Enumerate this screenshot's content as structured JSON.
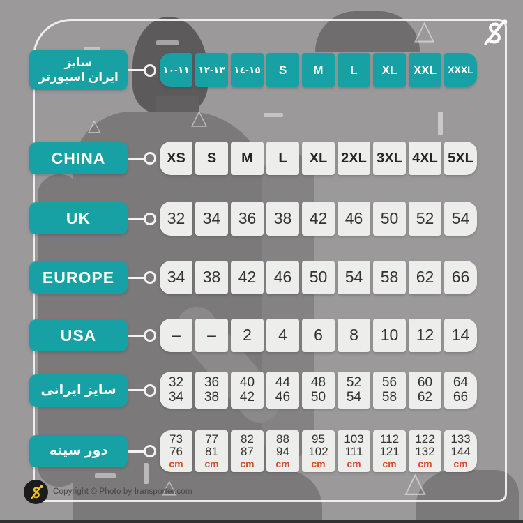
{
  "brand": {
    "copyright": "Copyright © Photo by Iransporter.com",
    "watermark": "iransporter-logo"
  },
  "colors": {
    "teal": "#17a1a5",
    "cell_bg": "#ededec",
    "cell_text": "#323232",
    "unit_orange": "#d84e2a",
    "background_gray": "#9b9999",
    "silhouette_gray": "#7b7979",
    "logo_yellow": "#efc41e"
  },
  "chart_data": {
    "type": "table",
    "title": "سایز ایران اسپورتر - size conversion chart",
    "columns": 9,
    "legend_position": "left",
    "rows": [
      {
        "id": "iransporter-size",
        "label_lines": [
          "سایز",
          "ایران اسپورتر"
        ],
        "lang": "fa",
        "cell_style": "teal",
        "cells": [
          [
            "۱۰-۱۱"
          ],
          [
            "۱۲-۱۳"
          ],
          [
            "۱٤-۱٥"
          ],
          [
            "S"
          ],
          [
            "M"
          ],
          [
            "L"
          ],
          [
            "XL"
          ],
          [
            "XXL"
          ],
          [
            "XXXL"
          ]
        ]
      },
      {
        "id": "china",
        "label_lines": [
          "CHINA"
        ],
        "lang": "en",
        "cell_style": "light",
        "bold_cells": true,
        "cells": [
          [
            "XS"
          ],
          [
            "S"
          ],
          [
            "M"
          ],
          [
            "L"
          ],
          [
            "XL"
          ],
          [
            "2XL"
          ],
          [
            "3XL"
          ],
          [
            "4XL"
          ],
          [
            "5XL"
          ]
        ]
      },
      {
        "id": "uk",
        "label_lines": [
          "UK"
        ],
        "lang": "en",
        "cell_style": "light",
        "cells": [
          [
            "32"
          ],
          [
            "34"
          ],
          [
            "36"
          ],
          [
            "38"
          ],
          [
            "42"
          ],
          [
            "46"
          ],
          [
            "50"
          ],
          [
            "52"
          ],
          [
            "54"
          ]
        ]
      },
      {
        "id": "europe",
        "label_lines": [
          "EUROPE"
        ],
        "lang": "en",
        "cell_style": "light",
        "cells": [
          [
            "34"
          ],
          [
            "38"
          ],
          [
            "42"
          ],
          [
            "46"
          ],
          [
            "50"
          ],
          [
            "54"
          ],
          [
            "58"
          ],
          [
            "62"
          ],
          [
            "66"
          ]
        ]
      },
      {
        "id": "usa",
        "label_lines": [
          "USA"
        ],
        "lang": "en",
        "cell_style": "light",
        "cells": [
          [
            "–"
          ],
          [
            "–"
          ],
          [
            "2"
          ],
          [
            "4"
          ],
          [
            "6"
          ],
          [
            "8"
          ],
          [
            "10"
          ],
          [
            "12"
          ],
          [
            "14"
          ]
        ]
      },
      {
        "id": "iranian-size",
        "label_lines": [
          "سایز ایرانی"
        ],
        "lang": "fa",
        "cell_style": "light",
        "cells": [
          [
            "32",
            "34"
          ],
          [
            "36",
            "38"
          ],
          [
            "40",
            "42"
          ],
          [
            "44",
            "46"
          ],
          [
            "48",
            "50"
          ],
          [
            "52",
            "54"
          ],
          [
            "56",
            "58"
          ],
          [
            "60",
            "62"
          ],
          [
            "64",
            "66"
          ]
        ]
      },
      {
        "id": "chest-circumference",
        "label_lines": [
          "دور سینه"
        ],
        "lang": "fa",
        "cell_style": "light",
        "unit": "cm",
        "cells": [
          [
            "73",
            "76"
          ],
          [
            "77",
            "81"
          ],
          [
            "82",
            "87"
          ],
          [
            "88",
            "94"
          ],
          [
            "95",
            "102"
          ],
          [
            "103",
            "111"
          ],
          [
            "112",
            "121"
          ],
          [
            "122",
            "132"
          ],
          [
            "133",
            "144"
          ]
        ]
      }
    ]
  }
}
